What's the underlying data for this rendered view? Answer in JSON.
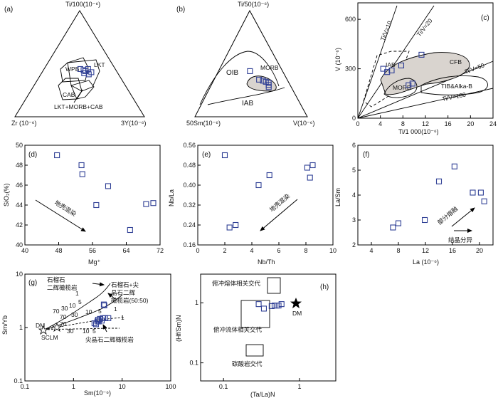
{
  "figure": {
    "a": {
      "panel_label": "(a)",
      "apex_top": "Ti/100(10⁻⁶)",
      "apex_left": "Zr (10⁻⁶)",
      "apex_right": "3Y(10⁻⁶)",
      "field_labels": [
        "WPB",
        "LKT",
        "CAB",
        "LKT+MORB+CAB"
      ]
    },
    "b": {
      "panel_label": "(b)",
      "apex_top": "Ti/50(10⁻⁶)",
      "apex_left": "50Sm(10⁻⁶)",
      "apex_right": "V(10⁻⁶)",
      "field_labels": [
        "OIB",
        "MORB",
        "IAB"
      ]
    },
    "c": {
      "panel_label": "(c)",
      "xlabel": "Ti/1 000(10⁻⁶)",
      "ylabel": "V (10⁻⁶)",
      "xticks": [
        "0",
        "4",
        "8",
        "12",
        "16",
        "20",
        "24"
      ],
      "yticks": [
        "0",
        "300",
        "600"
      ],
      "field_labels": [
        "IAB",
        "CFB",
        "MORB",
        "TIB&Alka-B"
      ],
      "ratio_labels": [
        "Ti/V=10",
        "Ti/V=20",
        "Ti/V=50",
        "Ti/V=100"
      ]
    },
    "d": {
      "panel_label": "(d)",
      "xlabel": "Mg⁺",
      "ylabel": "SiO₂(%)",
      "xticks": [
        "40",
        "48",
        "56",
        "64",
        "72"
      ],
      "yticks": [
        "40",
        "42",
        "44",
        "46",
        "48",
        "50"
      ],
      "arrow_label": "地壳混染"
    },
    "e": {
      "panel_label": "(e)",
      "xlabel": "Nb/Th",
      "ylabel": "Nb/La",
      "xticks": [
        "0",
        "2",
        "4",
        "6",
        "8",
        "10"
      ],
      "yticks": [
        "0.16",
        "0.24",
        "0.32",
        "0.40",
        "0.48",
        "0.56"
      ],
      "arrow_label": "地壳混染"
    },
    "f": {
      "panel_label": "(f)",
      "xlabel": "La (10⁻⁶)",
      "ylabel": "La/Sm",
      "xticks": [
        "4",
        "8",
        "12",
        "16",
        "20"
      ],
      "yticks": [
        "2",
        "3",
        "4",
        "5",
        "6"
      ],
      "arrow_labels": [
        "部分熔融",
        "结晶分异"
      ]
    },
    "g": {
      "panel_label": "(g)",
      "xlabel": "Sm(10⁻⁶)",
      "ylabel": "Sm/Yb",
      "xticks": [
        "0.1",
        "1",
        "10",
        "100"
      ],
      "yticks": [
        "0.1",
        "1",
        "10"
      ],
      "curve_labels_left": [
        "石榴石",
        "二辉橄榄岩"
      ],
      "curve_labels_right": [
        "石榴石+尖",
        "晶石二辉",
        "橄榄岩(50:50)"
      ],
      "curve_label_bottom": "尖晶石二辉橄榄岩",
      "source_labels": [
        "DM",
        "SCLM"
      ],
      "melt_numbers": [
        "1",
        "5",
        "10",
        "30",
        "70",
        "1",
        "5",
        "10",
        "30",
        "70",
        "1",
        "5",
        "10",
        "30",
        "70"
      ]
    },
    "h": {
      "panel_label": "(h)",
      "xlabel": "(Ta/La)N",
      "ylabel": "(Hf/Sm)N",
      "xticks": [
        "0.1",
        "1"
      ],
      "yticks": [
        "0.1",
        "1"
      ],
      "field_labels": [
        "俯冲熔体相关交代",
        "俯冲流体相关交代",
        "碳酸岩交代"
      ],
      "dm_label": "DM"
    }
  },
  "chart_data": [
    {
      "panel": "a",
      "type": "scatter",
      "kind": "ternary",
      "components": [
        "Ti/100",
        "Zr",
        "3Y"
      ],
      "points": [
        [
          0.45,
          0.27,
          0.28
        ],
        [
          0.44,
          0.25,
          0.31
        ],
        [
          0.43,
          0.24,
          0.33
        ],
        [
          0.41,
          0.26,
          0.33
        ],
        [
          0.4,
          0.23,
          0.37
        ],
        [
          0.42,
          0.2,
          0.38
        ],
        [
          0.45,
          0.21,
          0.34
        ]
      ]
    },
    {
      "panel": "b",
      "type": "scatter",
      "kind": "ternary",
      "components": [
        "Ti/50",
        "50Sm",
        "V"
      ],
      "points": [
        [
          0.43,
          0.29,
          0.28
        ],
        [
          0.35,
          0.25,
          0.4
        ],
        [
          0.34,
          0.22,
          0.44
        ],
        [
          0.33,
          0.2,
          0.47
        ],
        [
          0.32,
          0.18,
          0.5
        ],
        [
          0.3,
          0.19,
          0.51
        ],
        [
          0.28,
          0.2,
          0.52
        ]
      ]
    },
    {
      "panel": "c",
      "type": "scatter",
      "x": [
        4.5,
        5.2,
        6.0,
        7.7,
        9.0,
        9.7,
        11.3
      ],
      "y": [
        300,
        280,
        290,
        320,
        200,
        210,
        385
      ],
      "xlim": [
        0,
        24
      ],
      "ylim": [
        0,
        700
      ]
    },
    {
      "panel": "d",
      "type": "scatter",
      "x": [
        47.6,
        53.4,
        53.6,
        56.9,
        59.7,
        64.9,
        68.7,
        70.4
      ],
      "y": [
        49.0,
        48.0,
        47.1,
        44.0,
        45.9,
        41.5,
        44.1,
        44.2
      ],
      "xlim": [
        40,
        72
      ],
      "ylim": [
        40,
        50
      ]
    },
    {
      "panel": "e",
      "type": "scatter",
      "x": [
        2.0,
        2.35,
        2.8,
        4.5,
        5.3,
        8.1,
        8.3,
        8.5
      ],
      "y": [
        0.52,
        0.23,
        0.24,
        0.4,
        0.44,
        0.47,
        0.43,
        0.48
      ],
      "xlim": [
        0,
        10
      ],
      "ylim": [
        0.16,
        0.56
      ]
    },
    {
      "panel": "f",
      "type": "scatter",
      "x": [
        7.2,
        8.0,
        11.9,
        14.0,
        16.3,
        19.0,
        20.2,
        20.7
      ],
      "y": [
        2.7,
        2.87,
        3.0,
        4.55,
        5.15,
        4.1,
        4.1,
        3.75
      ],
      "xlim": [
        2,
        22
      ],
      "ylim": [
        2,
        6
      ]
    },
    {
      "panel": "g",
      "type": "scatter",
      "log": "xy",
      "x": [
        2.7,
        2.9,
        3.1,
        3.2,
        3.3,
        3.5,
        3.8,
        4.0,
        4.2,
        4.3,
        4.5,
        5.2
      ],
      "y": [
        1.2,
        1.15,
        1.3,
        1.4,
        1.3,
        1.45,
        1.35,
        1.5,
        2.7,
        2.6,
        1.5,
        1.5
      ],
      "xlim": [
        0.1,
        100
      ],
      "ylim": [
        0.1,
        10
      ]
    },
    {
      "panel": "h",
      "type": "scatter",
      "log": "xy",
      "x": [
        0.29,
        0.34,
        0.43,
        0.47,
        0.5,
        0.53,
        0.58
      ],
      "y": [
        0.95,
        0.8,
        0.88,
        0.9,
        0.9,
        0.9,
        0.95
      ],
      "xlim": [
        0.05,
        3
      ],
      "ylim": [
        0.05,
        3
      ]
    }
  ]
}
